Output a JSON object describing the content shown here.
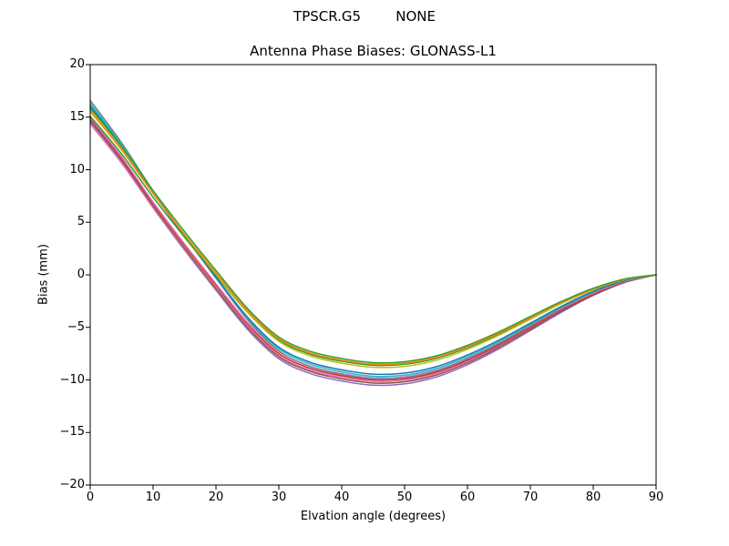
{
  "chart_data": {
    "type": "line",
    "suptitle": "TPSCR.G5        NONE",
    "title": "Antenna Phase Biases: GLONASS-L1",
    "xlabel": "Elvation angle (degrees)",
    "ylabel": "Bias (mm)",
    "xlim": [
      0,
      90
    ],
    "ylim": [
      -20,
      20
    ],
    "xticks": [
      0,
      10,
      20,
      30,
      40,
      50,
      60,
      70,
      80,
      90
    ],
    "yticks": [
      -20,
      -15,
      -10,
      -5,
      0,
      5,
      10,
      15,
      20
    ],
    "grid": false,
    "legend_position": "none",
    "x": [
      0,
      5,
      10,
      15,
      20,
      25,
      30,
      35,
      40,
      45,
      50,
      55,
      60,
      65,
      70,
      75,
      80,
      85,
      90
    ],
    "base_curve_mm": [
      15.5,
      11.7,
      7.4,
      3.4,
      -0.4,
      -4.1,
      -6.9,
      -8.3,
      -9.0,
      -9.4,
      -9.3,
      -8.7,
      -7.6,
      -6.2,
      -4.6,
      -3.0,
      -1.6,
      -0.55,
      0.0
    ],
    "series_note": "bundle of per-channel bias curves; each defined by its bias at 0 deg and at the 45 deg minimum, all converging to 0.0 mm at 90 deg",
    "series": [
      {
        "color": "#9467bd",
        "bias_at_0deg": 14.5,
        "bias_at_45deg": -10.5
      },
      {
        "color": "#e377c2",
        "bias_at_0deg": 14.35,
        "bias_at_45deg": -10.15
      },
      {
        "color": "#8c564b",
        "bias_at_0deg": 14.7,
        "bias_at_45deg": -10.3
      },
      {
        "color": "#d62728",
        "bias_at_0deg": 14.9,
        "bias_at_45deg": -10.0
      },
      {
        "color": "#e377c2",
        "bias_at_0deg": 15.0,
        "bias_at_45deg": -9.8
      },
      {
        "color": "#7f7f7f",
        "bias_at_0deg": 16.6,
        "bias_at_45deg": -9.9
      },
      {
        "color": "#17becf",
        "bias_at_0deg": 16.35,
        "bias_at_45deg": -9.65
      },
      {
        "color": "#1f77b4",
        "bias_at_0deg": 16.1,
        "bias_at_45deg": -9.45
      },
      {
        "color": "#2ca02c",
        "bias_at_0deg": 15.1,
        "bias_at_45deg": -8.6
      },
      {
        "color": "#bcbd22",
        "bias_at_0deg": 15.75,
        "bias_at_45deg": -8.8
      },
      {
        "color": "#ff7f0e",
        "bias_at_0deg": 15.55,
        "bias_at_45deg": -8.5
      },
      {
        "color": "#2ca02c",
        "bias_at_0deg": 15.9,
        "bias_at_45deg": -8.35
      }
    ],
    "axis_color": "#000000",
    "background_color": "#ffffff"
  }
}
